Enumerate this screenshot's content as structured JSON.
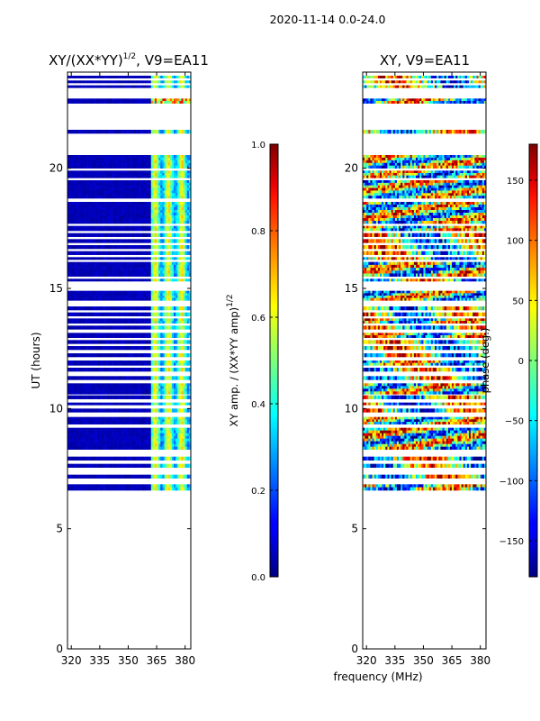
{
  "suptitle": "2020-11-14 0.0-24.0",
  "colors": {
    "background": "#ffffff",
    "blank_row": "#ffffff",
    "axis": "#000000"
  },
  "chart_data": [
    {
      "type": "heatmap",
      "title_main": "XY/(XX*YY)",
      "title_exp": "1/2",
      "title_tail": ", V9=EA11",
      "xlabel": "",
      "ylabel": "UT (hours)",
      "xlim": [
        318,
        383
      ],
      "ylim": [
        0,
        24
      ],
      "xticks": [
        320,
        335,
        350,
        365,
        380
      ],
      "yticks": [
        0,
        5,
        10,
        15,
        20
      ],
      "colorbar": {
        "label": "XY amp. / (XX*YY amp)",
        "label_exp": "1/2",
        "min": 0.0,
        "max": 1.0,
        "ticks": [
          0.0,
          0.2,
          0.4,
          0.6,
          0.8,
          1.0
        ],
        "tick_labels": [
          "0.0",
          "0.2",
          "0.4",
          "0.6",
          "0.8",
          "1.0"
        ],
        "colormap": "jet"
      },
      "data_ranges_hours": [
        [
          6.6,
          6.85
        ],
        [
          7.1,
          7.25
        ],
        [
          7.55,
          7.7
        ],
        [
          7.85,
          8.0
        ],
        [
          8.3,
          9.2
        ],
        [
          9.35,
          9.65
        ],
        [
          9.85,
          10.0
        ],
        [
          10.15,
          10.25
        ],
        [
          10.4,
          10.55
        ],
        [
          10.6,
          11.05
        ],
        [
          11.2,
          11.35
        ],
        [
          11.55,
          11.7
        ],
        [
          11.8,
          12.0
        ],
        [
          12.15,
          12.3
        ],
        [
          12.45,
          12.6
        ],
        [
          12.7,
          12.85
        ],
        [
          12.95,
          13.15
        ],
        [
          13.3,
          13.45
        ],
        [
          13.55,
          13.75
        ],
        [
          13.85,
          14.0
        ],
        [
          14.1,
          14.25
        ],
        [
          14.5,
          14.9
        ],
        [
          15.3,
          15.4
        ],
        [
          15.5,
          16.1
        ],
        [
          16.2,
          16.3
        ],
        [
          16.4,
          16.55
        ],
        [
          16.65,
          16.8
        ],
        [
          16.9,
          17.05
        ],
        [
          17.15,
          17.3
        ],
        [
          17.4,
          17.6
        ],
        [
          17.7,
          18.6
        ],
        [
          18.75,
          19.5
        ],
        [
          19.6,
          19.9
        ],
        [
          20.0,
          20.55
        ],
        [
          21.45,
          21.6
        ],
        [
          22.7,
          22.9
        ],
        [
          23.35,
          23.45
        ],
        [
          23.55,
          23.65
        ],
        [
          23.75,
          23.85
        ]
      ],
      "summary": "Normalized XY amplitude is near 0 (dark blue) from 320 to ~362 MHz and elevated (0.3-0.6, cyan/green) in vertical stripes between ~362 and 380 MHz; data present only between ~6.6 and 24 UT hours."
    },
    {
      "type": "heatmap",
      "title_main": "XY, V9=EA11",
      "xlabel": "frequency (MHz)",
      "ylabel": "",
      "xlim": [
        318,
        383
      ],
      "ylim": [
        0,
        24
      ],
      "xticks": [
        320,
        335,
        350,
        365,
        380
      ],
      "yticks": [
        0,
        5,
        10,
        15,
        20
      ],
      "colorbar": {
        "label": "phase (deg.)",
        "min": -180,
        "max": 180,
        "ticks": [
          -150,
          -100,
          -50,
          0,
          50,
          100,
          150
        ],
        "tick_labels": [
          "−150",
          "−100",
          "−50",
          "0",
          "50",
          "100",
          "150"
        ],
        "colormap": "jet"
      },
      "data_ranges_hours": [
        [
          6.6,
          6.85
        ],
        [
          7.1,
          7.25
        ],
        [
          7.55,
          7.7
        ],
        [
          7.85,
          8.0
        ],
        [
          8.3,
          9.2
        ],
        [
          9.35,
          9.65
        ],
        [
          9.85,
          10.0
        ],
        [
          10.15,
          10.25
        ],
        [
          10.4,
          10.55
        ],
        [
          10.6,
          11.05
        ],
        [
          11.2,
          11.35
        ],
        [
          11.55,
          11.7
        ],
        [
          11.8,
          12.0
        ],
        [
          12.15,
          12.3
        ],
        [
          12.45,
          12.6
        ],
        [
          12.7,
          12.85
        ],
        [
          12.95,
          13.15
        ],
        [
          13.3,
          13.45
        ],
        [
          13.55,
          13.75
        ],
        [
          13.85,
          14.0
        ],
        [
          14.1,
          14.25
        ],
        [
          14.5,
          14.9
        ],
        [
          15.3,
          15.4
        ],
        [
          15.5,
          16.1
        ],
        [
          16.2,
          16.3
        ],
        [
          16.4,
          16.55
        ],
        [
          16.65,
          16.8
        ],
        [
          16.9,
          17.05
        ],
        [
          17.15,
          17.3
        ],
        [
          17.4,
          17.6
        ],
        [
          17.7,
          18.6
        ],
        [
          18.75,
          19.5
        ],
        [
          19.6,
          19.9
        ],
        [
          20.0,
          20.55
        ],
        [
          21.45,
          21.6
        ],
        [
          22.7,
          22.9
        ],
        [
          23.35,
          23.45
        ],
        [
          23.55,
          23.65
        ],
        [
          23.75,
          23.85
        ]
      ],
      "summary": "XY phase is noisy across the full band, spanning -180 to 180 degrees with patches of red/orange (+100 to +180) and cyan/blue (-50 to -150); same UT coverage as the amplitude panel."
    }
  ]
}
